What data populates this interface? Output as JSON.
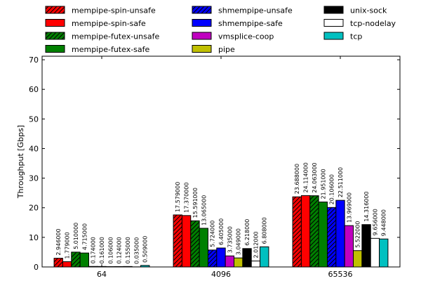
{
  "chart_data": {
    "type": "bar",
    "title": "",
    "xlabel": "",
    "ylabel": "Throughput [Gbps]",
    "ylim": [
      0,
      71.2
    ],
    "yticks": [
      0,
      10,
      20,
      30,
      40,
      50,
      60,
      70
    ],
    "categories": [
      "64",
      "4096",
      "65536"
    ],
    "legend_placement": "top",
    "series": [
      {
        "name": "mempipe-spin-unsafe",
        "color": "#ff0000",
        "hatch": true,
        "values": [
          2.946,
          17.579,
          23.688
        ],
        "labels": [
          "2.946000",
          "17.579000",
          "23.688000"
        ]
      },
      {
        "name": "mempipe-spin-safe",
        "color": "#ff0000",
        "hatch": false,
        "values": [
          1.779,
          17.37,
          24.114
        ],
        "labels": [
          "1.779000",
          "17.370000",
          "24.114000"
        ]
      },
      {
        "name": "mempipe-futex-unsafe",
        "color": "#008000",
        "hatch": true,
        "values": [
          5.01,
          15.591,
          24.063
        ],
        "labels": [
          "5.010000",
          "15.591000",
          "24.063000"
        ]
      },
      {
        "name": "mempipe-futex-safe",
        "color": "#008000",
        "hatch": false,
        "values": [
          4.715,
          13.065,
          21.951
        ],
        "labels": [
          "4.715000",
          "13.065000",
          "21.951000"
        ]
      },
      {
        "name": "shmempipe-unsafe",
        "color": "#0000ff",
        "hatch": true,
        "values": [
          0.174,
          5.724,
          20.106
        ],
        "labels": [
          "0.174000",
          "5.724000",
          "20.106000"
        ]
      },
      {
        "name": "shmempipe-safe",
        "color": "#0000ff",
        "hatch": false,
        "values": [
          0.161,
          6.405,
          22.511
        ],
        "labels": [
          "0.161000",
          "6.405000",
          "22.511000"
        ]
      },
      {
        "name": "vmsplice-coop",
        "color": "#c000c0",
        "hatch": false,
        "values": [
          0.106,
          3.735,
          13.969
        ],
        "labels": [
          "0.106000",
          "3.735000",
          "13.969000"
        ]
      },
      {
        "name": "pipe",
        "color": "#c0c000",
        "hatch": false,
        "values": [
          0.124,
          3.049,
          5.522
        ],
        "labels": [
          "0.124000",
          "3.049000",
          "5.522000"
        ]
      },
      {
        "name": "unix-sock",
        "color": "#000000",
        "hatch": false,
        "values": [
          0.155,
          6.218,
          14.316
        ],
        "labels": [
          "0.155000",
          "6.218000",
          "14.316000"
        ]
      },
      {
        "name": "tcp-nodelay",
        "color": "#ffffff",
        "hatch": false,
        "values": [
          0.035,
          2.012,
          9.656
        ],
        "labels": [
          "0.035000",
          "2.012000",
          "9.656000"
        ]
      },
      {
        "name": "tcp",
        "color": "#00c0c0",
        "hatch": false,
        "values": [
          0.509,
          6.808,
          9.448
        ],
        "labels": [
          "0.509000",
          "6.808000",
          "9.448000"
        ]
      }
    ]
  }
}
